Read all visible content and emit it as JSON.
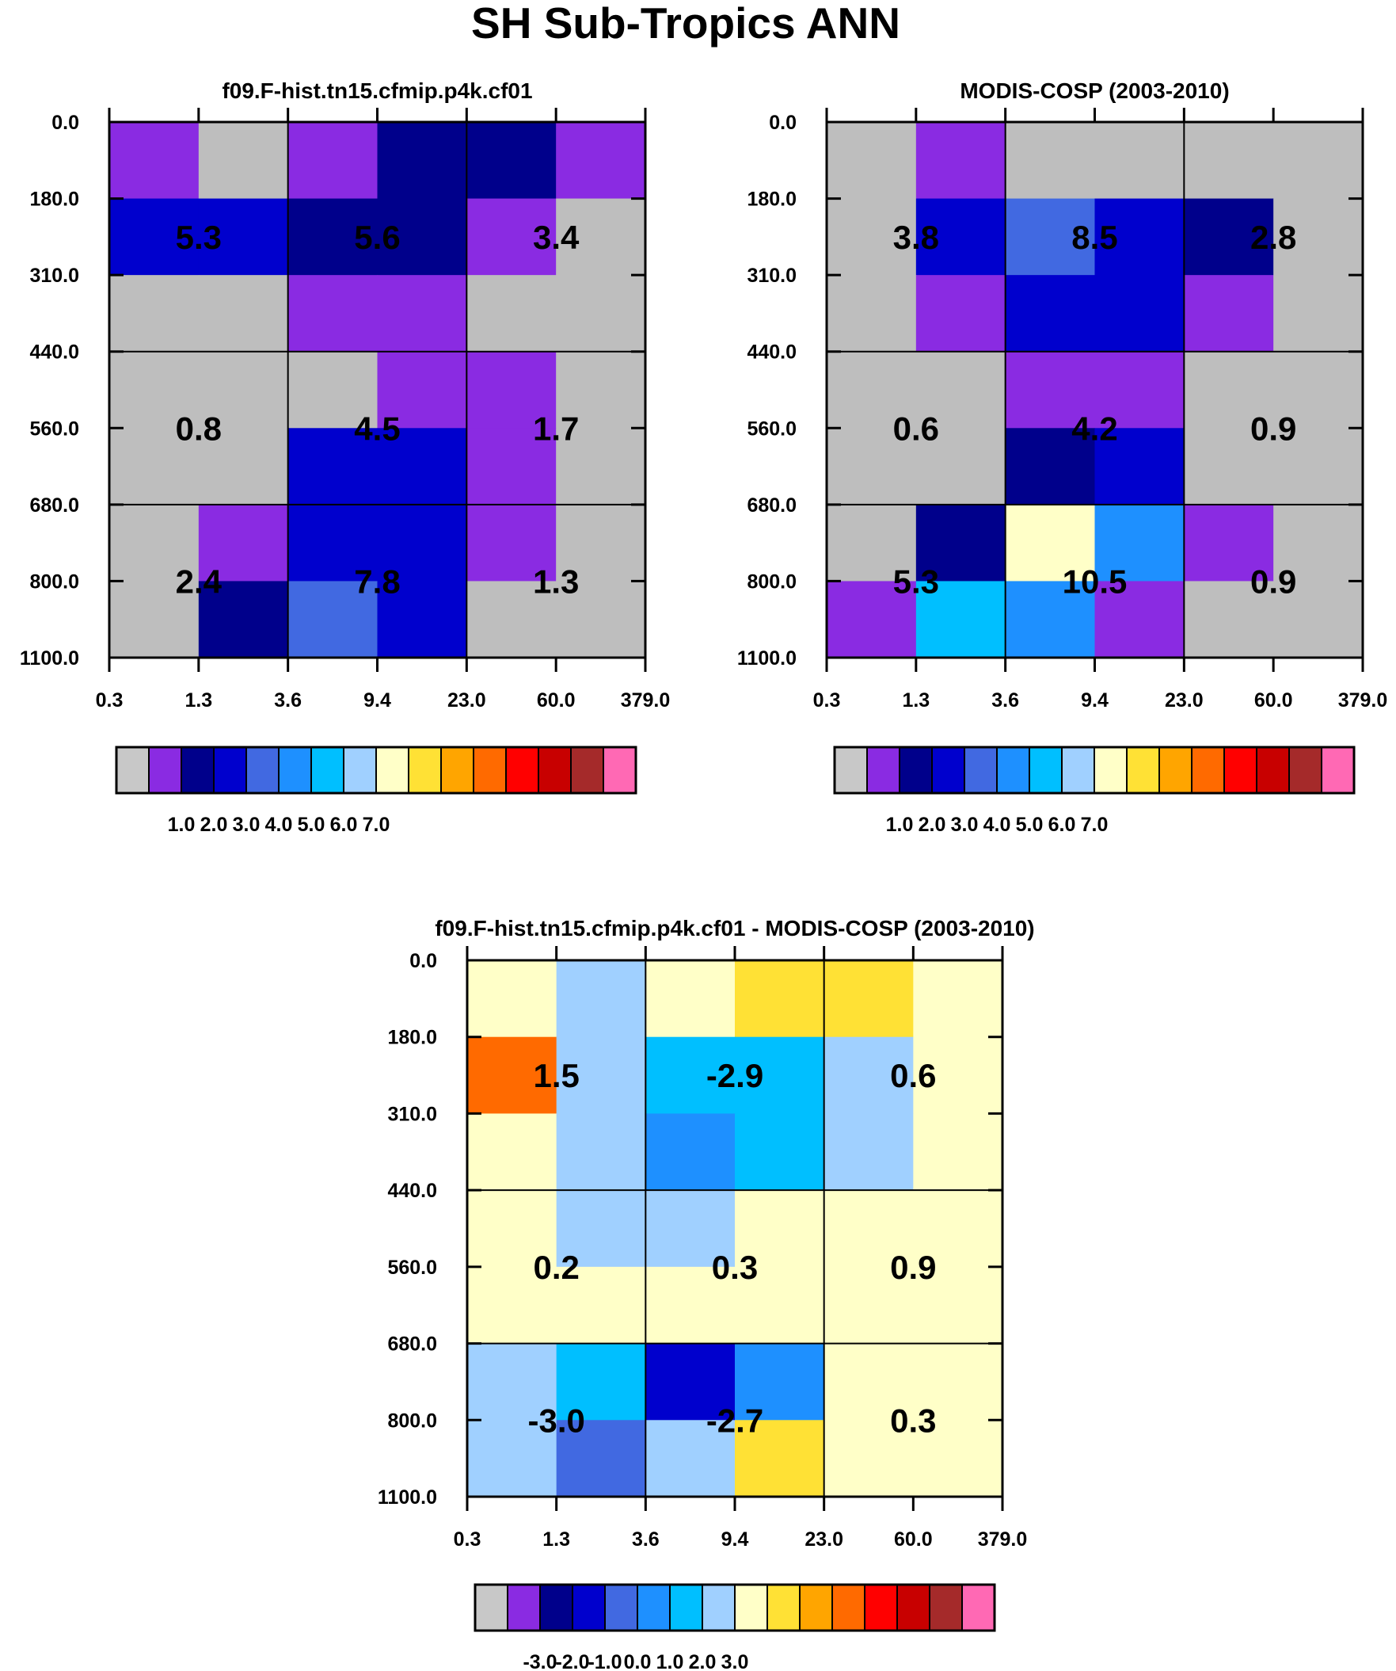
{
  "figure_title": "SH Sub-Tropics ANN",
  "chart_data": [
    {
      "type": "heatmap",
      "title": "f09.F-hist.tn15.cfmip.p4k.cf01",
      "x_ticks": [
        "0.3",
        "1.3",
        "3.6",
        "9.4",
        "23.0",
        "60.0",
        "379.0"
      ],
      "y_ticks": [
        "0.0",
        "180.0",
        "310.0",
        "440.0",
        "560.0",
        "680.0",
        "800.0",
        "1100.0"
      ],
      "cells": [
        [
          "#8a2be2",
          "#bebebe",
          "#8a2be2",
          "#00008b",
          "#00008b",
          "#8a2be2"
        ],
        [
          "#0000cd",
          "#0000cd",
          "#00008b",
          "#00008b",
          "#8a2be2",
          "#bebebe"
        ],
        [
          "#bebebe",
          "#bebebe",
          "#8a2be2",
          "#8a2be2",
          "#bebebe",
          "#bebebe"
        ],
        [
          "#bebebe",
          "#bebebe",
          "#bebebe",
          "#8a2be2",
          "#8a2be2",
          "#bebebe"
        ],
        [
          "#bebebe",
          "#bebebe",
          "#0000cd",
          "#0000cd",
          "#8a2be2",
          "#bebebe"
        ],
        [
          "#bebebe",
          "#8a2be2",
          "#0000cd",
          "#0000cd",
          "#8a2be2",
          "#bebebe"
        ],
        [
          "#bebebe",
          "#00008b",
          "#4169e1",
          "#0000cd",
          "#bebebe",
          "#bebebe"
        ]
      ],
      "block_values": [
        [
          "5.3",
          "5.6",
          "3.4"
        ],
        [
          "0.8",
          "4.5",
          "1.7"
        ],
        [
          "2.4",
          "7.8",
          "1.3"
        ]
      ],
      "colorbar_labels": [
        "1.0",
        "2.0",
        "3.0",
        "4.0",
        "5.0",
        "6.0",
        "7.0"
      ],
      "colorbar_colors": [
        "#c8c8c8",
        "#8a2be2",
        "#00008b",
        "#0000cd",
        "#4169e1",
        "#1e90ff",
        "#00bfff",
        "#a0d0ff",
        "#ffffc8",
        "#ffe135",
        "#ffa500",
        "#ff6a00",
        "#ff0000",
        "#c80000",
        "#a52a2a",
        "#ff69b4"
      ]
    },
    {
      "type": "heatmap",
      "title": "MODIS-COSP (2003-2010)",
      "x_ticks": [
        "0.3",
        "1.3",
        "3.6",
        "9.4",
        "23.0",
        "60.0",
        "379.0"
      ],
      "y_ticks": [
        "0.0",
        "180.0",
        "310.0",
        "440.0",
        "560.0",
        "680.0",
        "800.0",
        "1100.0"
      ],
      "cells": [
        [
          "#bebebe",
          "#8a2be2",
          "#bebebe",
          "#bebebe",
          "#bebebe",
          "#bebebe"
        ],
        [
          "#bebebe",
          "#0000cd",
          "#4169e1",
          "#0000cd",
          "#00008b",
          "#bebebe"
        ],
        [
          "#bebebe",
          "#8a2be2",
          "#0000cd",
          "#0000cd",
          "#8a2be2",
          "#bebebe"
        ],
        [
          "#bebebe",
          "#bebebe",
          "#8a2be2",
          "#8a2be2",
          "#bebebe",
          "#bebebe"
        ],
        [
          "#bebebe",
          "#bebebe",
          "#00008b",
          "#0000cd",
          "#bebebe",
          "#bebebe"
        ],
        [
          "#bebebe",
          "#00008b",
          "#ffffc8",
          "#1e90ff",
          "#8a2be2",
          "#bebebe"
        ],
        [
          "#8a2be2",
          "#00bfff",
          "#1e90ff",
          "#8a2be2",
          "#bebebe",
          "#bebebe"
        ]
      ],
      "block_values": [
        [
          "3.8",
          "8.5",
          "2.8"
        ],
        [
          "0.6",
          "4.2",
          "0.9"
        ],
        [
          "5.3",
          "10.5",
          "0.9"
        ]
      ],
      "colorbar_labels": [
        "1.0",
        "2.0",
        "3.0",
        "4.0",
        "5.0",
        "6.0",
        "7.0"
      ],
      "colorbar_colors": [
        "#c8c8c8",
        "#8a2be2",
        "#00008b",
        "#0000cd",
        "#4169e1",
        "#1e90ff",
        "#00bfff",
        "#a0d0ff",
        "#ffffc8",
        "#ffe135",
        "#ffa500",
        "#ff6a00",
        "#ff0000",
        "#c80000",
        "#a52a2a",
        "#ff69b4"
      ]
    },
    {
      "type": "heatmap",
      "title": "f09.F-hist.tn15.cfmip.p4k.cf01 - MODIS-COSP (2003-2010)",
      "x_ticks": [
        "0.3",
        "1.3",
        "3.6",
        "9.4",
        "23.0",
        "60.0",
        "379.0"
      ],
      "y_ticks": [
        "0.0",
        "180.0",
        "310.0",
        "440.0",
        "560.0",
        "680.0",
        "800.0",
        "1100.0"
      ],
      "cells": [
        [
          "#ffffc8",
          "#a0d0ff",
          "#ffffc8",
          "#ffe135",
          "#ffe135",
          "#ffffc8"
        ],
        [
          "#ff6a00",
          "#a0d0ff",
          "#00bfff",
          "#00bfff",
          "#a0d0ff",
          "#ffffc8"
        ],
        [
          "#ffffc8",
          "#a0d0ff",
          "#1e90ff",
          "#00bfff",
          "#a0d0ff",
          "#ffffc8"
        ],
        [
          "#ffffc8",
          "#a0d0ff",
          "#a0d0ff",
          "#ffffc8",
          "#ffffc8",
          "#ffffc8"
        ],
        [
          "#ffffc8",
          "#ffffc8",
          "#ffffc8",
          "#ffffc8",
          "#ffffc8",
          "#ffffc8"
        ],
        [
          "#a0d0ff",
          "#00bfff",
          "#0000cd",
          "#1e90ff",
          "#ffffc8",
          "#ffffc8"
        ],
        [
          "#a0d0ff",
          "#4169e1",
          "#a0d0ff",
          "#ffe135",
          "#ffffc8",
          "#ffffc8"
        ]
      ],
      "block_values": [
        [
          "1.5",
          "-2.9",
          "0.6"
        ],
        [
          "0.2",
          "0.3",
          "0.9"
        ],
        [
          "-3.0",
          "-2.7",
          "0.3"
        ]
      ],
      "colorbar_labels": [
        "-3.0",
        "-2.0",
        "-1.0",
        "0.0",
        "1.0",
        "2.0",
        "3.0"
      ],
      "colorbar_colors": [
        "#c8c8c8",
        "#8a2be2",
        "#00008b",
        "#0000cd",
        "#4169e1",
        "#1e90ff",
        "#00bfff",
        "#a0d0ff",
        "#ffffc8",
        "#ffe135",
        "#ffa500",
        "#ff6a00",
        "#ff0000",
        "#c80000",
        "#a52a2a",
        "#ff69b4"
      ]
    }
  ]
}
